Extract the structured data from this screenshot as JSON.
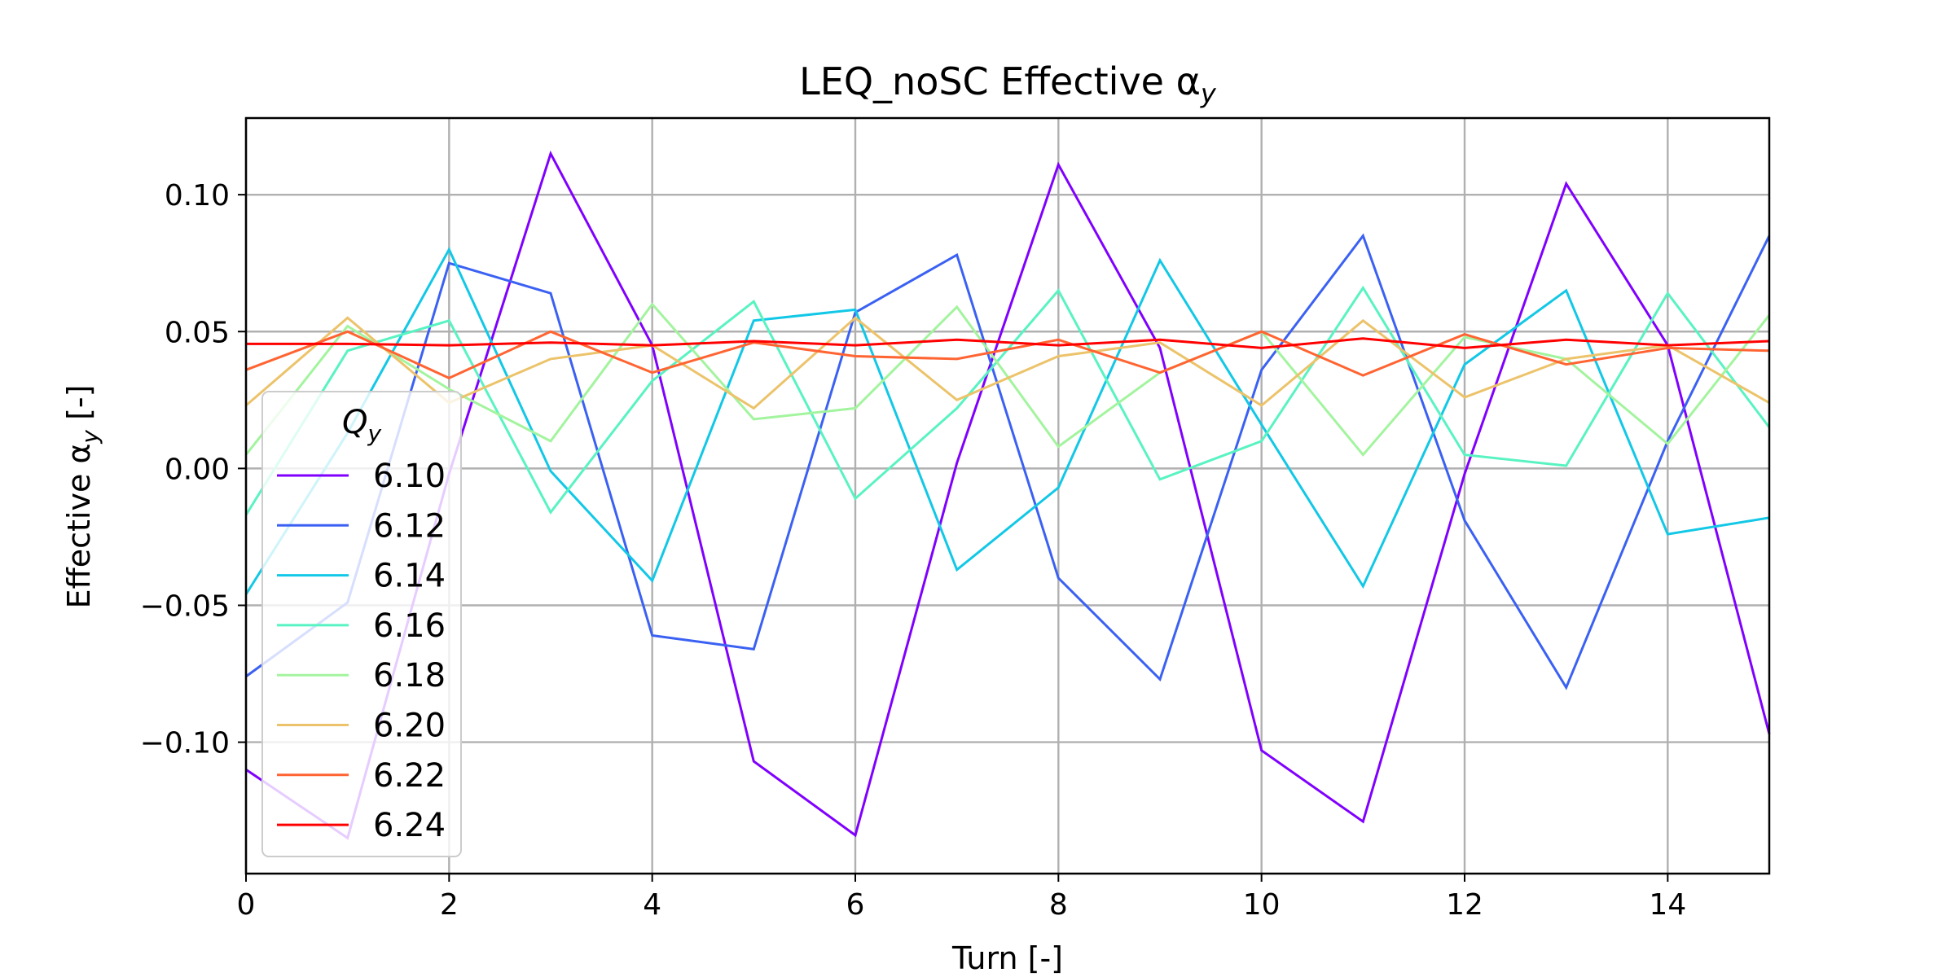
{
  "chart_data": {
    "type": "line",
    "title": "LEQ_noSC Effective α",
    "title_sub": "y",
    "xlabel": "Turn [-]",
    "ylabel": "Effective α",
    "ylabel_sub": "y",
    "ylabel_suffix": " [-]",
    "xlim": [
      0,
      15
    ],
    "ylim": [
      -0.148,
      0.128
    ],
    "x_ticks": [
      0,
      2,
      4,
      6,
      8,
      10,
      12,
      14
    ],
    "x_tick_labels": [
      "0",
      "2",
      "4",
      "6",
      "8",
      "10",
      "12",
      "14"
    ],
    "y_ticks": [
      -0.1,
      -0.05,
      0.0,
      0.05,
      0.1
    ],
    "y_tick_labels": [
      "−0.10",
      "−0.05",
      "0.00",
      "0.05",
      "0.10"
    ],
    "grid": true,
    "legend": {
      "title": "Q",
      "title_sub": "y",
      "placement": "lower-left"
    },
    "x": [
      0,
      1,
      2,
      3,
      4,
      5,
      6,
      7,
      8,
      9,
      10,
      11,
      12,
      13,
      14,
      15
    ],
    "series": [
      {
        "name": "6.10",
        "color": "#8000ff",
        "values": [
          -0.11,
          -0.135,
          -0.002,
          0.115,
          0.045,
          -0.107,
          -0.134,
          0.002,
          0.111,
          0.044,
          -0.103,
          -0.129,
          -0.002,
          0.104,
          0.045,
          -0.097
        ]
      },
      {
        "name": "6.12",
        "color": "#3b61f3",
        "values": [
          -0.076,
          -0.049,
          0.075,
          0.064,
          -0.061,
          -0.066,
          0.057,
          0.078,
          -0.04,
          -0.077,
          0.036,
          0.085,
          -0.019,
          -0.08,
          0.01,
          0.085
        ]
      },
      {
        "name": "6.14",
        "color": "#12c8e6",
        "values": [
          -0.046,
          0.013,
          0.08,
          -0.001,
          -0.041,
          0.054,
          0.058,
          -0.037,
          -0.007,
          0.076,
          0.016,
          -0.043,
          0.038,
          0.065,
          -0.024,
          -0.018
        ]
      },
      {
        "name": "6.16",
        "color": "#59f3c2",
        "values": [
          -0.017,
          0.043,
          0.054,
          -0.016,
          0.032,
          0.061,
          -0.011,
          0.022,
          0.065,
          -0.004,
          0.01,
          0.066,
          0.005,
          0.001,
          0.064,
          0.015
        ]
      },
      {
        "name": "6.18",
        "color": "#a3f49e",
        "values": [
          0.005,
          0.052,
          0.029,
          0.01,
          0.06,
          0.018,
          0.022,
          0.059,
          0.008,
          0.035,
          0.05,
          0.005,
          0.048,
          0.04,
          0.009,
          0.056
        ]
      },
      {
        "name": "6.20",
        "color": "#ecc36a",
        "values": [
          0.023,
          0.055,
          0.024,
          0.04,
          0.045,
          0.022,
          0.055,
          0.025,
          0.041,
          0.046,
          0.023,
          0.054,
          0.026,
          0.04,
          0.045,
          0.024
        ]
      },
      {
        "name": "6.22",
        "color": "#ff6432",
        "values": [
          0.036,
          0.05,
          0.033,
          0.05,
          0.035,
          0.046,
          0.041,
          0.04,
          0.047,
          0.035,
          0.05,
          0.034,
          0.049,
          0.038,
          0.044,
          0.043
        ]
      },
      {
        "name": "6.24",
        "color": "#ff0000",
        "values": [
          0.0455,
          0.0455,
          0.045,
          0.046,
          0.045,
          0.0465,
          0.045,
          0.047,
          0.045,
          0.047,
          0.044,
          0.0475,
          0.044,
          0.047,
          0.045,
          0.0465
        ]
      }
    ]
  }
}
